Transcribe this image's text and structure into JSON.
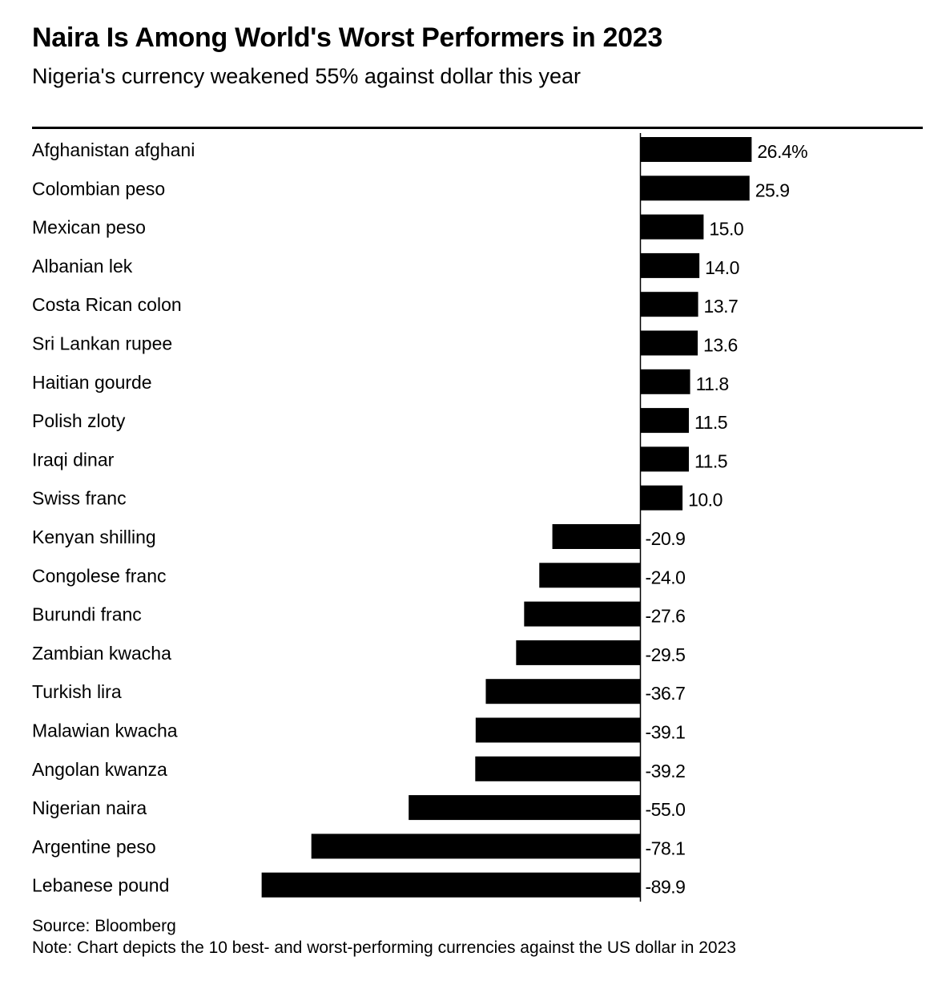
{
  "header": {
    "title": "Naira Is Among World's Worst Performers in 2023",
    "subtitle": "Nigeria's currency weakened 55% against dollar this year"
  },
  "footer": {
    "source": "Source: Bloomberg",
    "note": "Note: Chart depicts the 10 best- and worst-performing currencies against the US dollar in 2023"
  },
  "chart_data": {
    "type": "bar",
    "orientation": "horizontal",
    "title": "Naira Is Among World's Worst Performers in 2023",
    "subtitle": "Nigeria's currency weakened 55% against dollar this year",
    "xlabel": "",
    "ylabel": "",
    "unit": "%",
    "categories": [
      "Afghanistan afghani",
      "Colombian peso",
      "Mexican peso",
      "Albanian lek",
      "Costa Rican colon",
      "Sri Lankan rupee",
      "Haitian gourde",
      "Polish zloty",
      "Iraqi dinar",
      "Swiss franc",
      "Kenyan shilling",
      "Congolese franc",
      "Burundi franc",
      "Zambian kwacha",
      "Turkish lira",
      "Malawian kwacha",
      "Angolan kwanza",
      "Nigerian naira",
      "Argentine peso",
      "Lebanese pound"
    ],
    "values": [
      26.4,
      25.9,
      15.0,
      14.0,
      13.7,
      13.6,
      11.8,
      11.5,
      11.5,
      10.0,
      -20.9,
      -24.0,
      -27.6,
      -29.5,
      -36.7,
      -39.1,
      -39.2,
      -55.0,
      -78.1,
      -89.9
    ],
    "value_labels": [
      "26.4%",
      "25.9",
      "15.0",
      "14.0",
      "13.7",
      "13.6",
      "11.8",
      "11.5",
      "11.5",
      "10.0",
      "-20.9",
      "-24.0",
      "-27.6",
      "-29.5",
      "-36.7",
      "-39.1",
      "-39.2",
      "-55.0",
      "-78.1",
      "-89.9"
    ],
    "xlim": [
      -89.9,
      26.4
    ],
    "grid": false,
    "legend": "none",
    "colors": {
      "bar": "#000000",
      "text": "#000000",
      "background": "#ffffff"
    }
  }
}
